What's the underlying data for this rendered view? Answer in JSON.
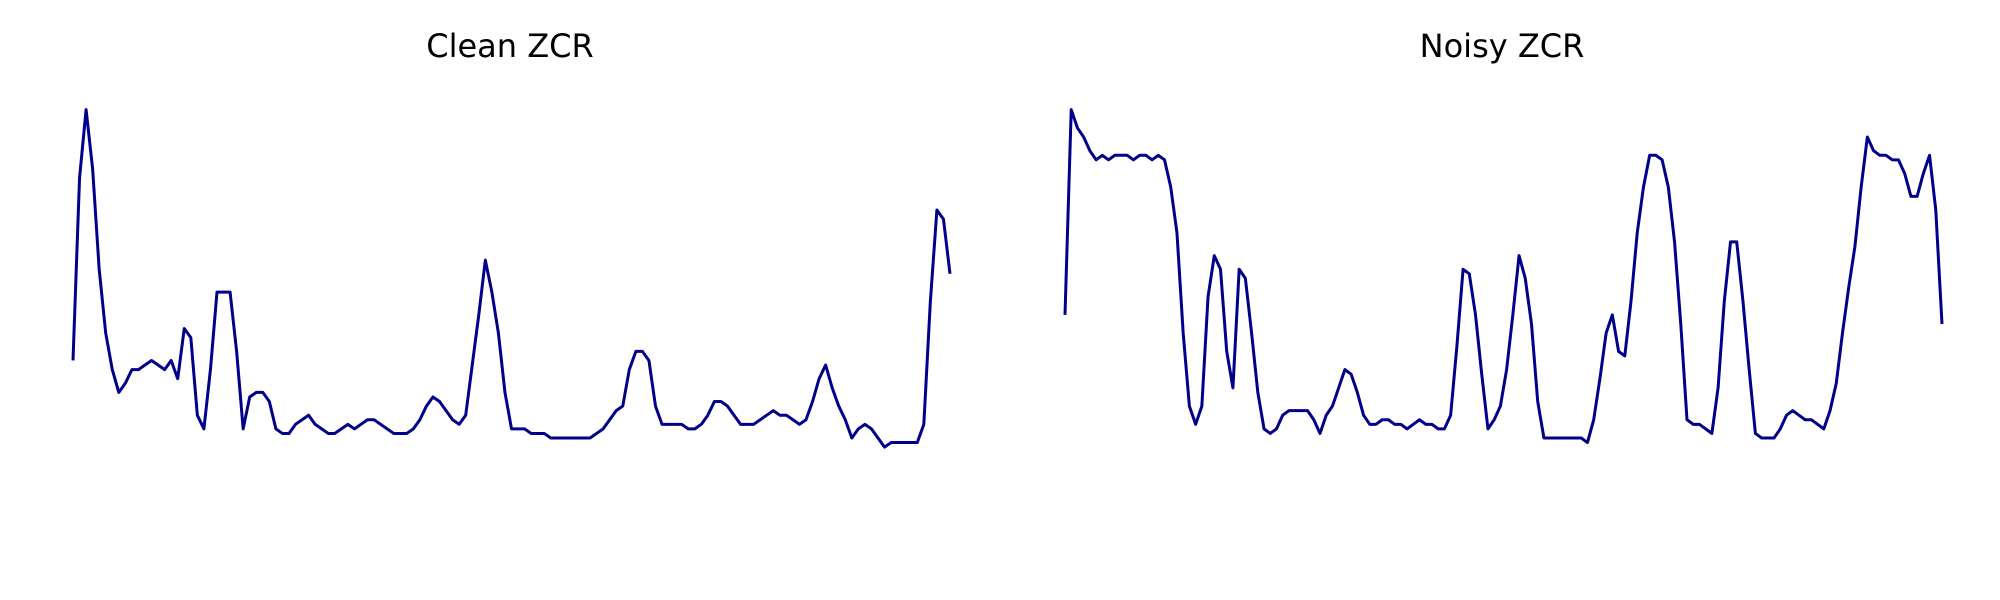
{
  "chart_data": [
    {
      "type": "line",
      "title": "Clean ZCR",
      "xlabel": "",
      "ylabel": "",
      "grid": false,
      "axes_visible": false,
      "line_color": "#00008b",
      "xlim": [
        0,
        150
      ],
      "ylim": [
        0,
        100
      ],
      "series": [
        {
          "values": [
            42,
            82,
            97,
            84,
            62,
            48,
            40,
            35,
            37,
            40,
            40,
            41,
            42,
            41,
            40,
            42,
            38,
            49,
            47,
            30,
            27,
            40,
            57,
            57,
            57,
            44,
            27,
            34,
            35,
            35,
            33,
            27,
            26,
            26,
            28,
            29,
            30,
            28,
            27,
            26,
            26,
            27,
            28,
            27,
            28,
            29,
            29,
            28,
            27,
            26,
            26,
            26,
            27,
            29,
            32,
            34,
            33,
            31,
            29,
            28,
            30,
            41,
            52,
            64,
            57,
            48,
            35,
            27,
            27,
            27,
            26,
            26,
            26,
            25,
            25,
            25,
            25,
            25,
            25,
            25,
            26,
            27,
            29,
            31,
            32,
            40,
            44,
            44,
            42,
            32,
            28,
            28,
            28,
            28,
            27,
            27,
            28,
            30,
            33,
            33,
            32,
            30,
            28,
            28,
            28,
            29,
            30,
            31,
            30,
            30,
            29,
            28,
            29,
            33,
            38,
            41,
            36,
            32,
            29,
            25,
            27,
            28,
            27,
            25,
            23,
            24,
            24,
            24,
            24,
            24,
            28,
            55,
            75,
            73,
            61
          ]
        }
      ]
    },
    {
      "type": "line",
      "title": "Noisy ZCR",
      "xlabel": "",
      "ylabel": "",
      "grid": false,
      "axes_visible": false,
      "line_color": "#00008b",
      "xlim": [
        0,
        150
      ],
      "ylim": [
        0,
        100
      ],
      "series": [
        {
          "values": [
            52,
            97,
            93,
            91,
            88,
            86,
            87,
            86,
            87,
            87,
            87,
            86,
            87,
            87,
            86,
            87,
            86,
            80,
            70,
            48,
            32,
            28,
            32,
            56,
            65,
            62,
            44,
            36,
            62,
            60,
            48,
            35,
            27,
            26,
            27,
            30,
            31,
            31,
            31,
            31,
            29,
            26,
            30,
            32,
            36,
            40,
            39,
            35,
            30,
            28,
            28,
            29,
            29,
            28,
            28,
            27,
            28,
            29,
            28,
            28,
            27,
            27,
            30,
            45,
            62,
            61,
            52,
            39,
            27,
            29,
            32,
            40,
            52,
            65,
            60,
            50,
            33,
            25,
            25,
            25,
            25,
            25,
            25,
            25,
            24,
            29,
            38,
            48,
            52,
            44,
            43,
            55,
            70,
            80,
            87,
            87,
            86,
            80,
            68,
            50,
            29,
            28,
            28,
            27,
            26,
            36,
            55,
            68,
            68,
            55,
            40,
            26,
            25,
            25,
            25,
            27,
            30,
            31,
            30,
            29,
            29,
            28,
            27,
            31,
            37,
            48,
            58,
            67,
            80,
            91,
            88,
            87,
            87,
            86,
            86,
            83,
            78,
            78,
            83,
            87,
            75,
            50
          ]
        }
      ]
    }
  ]
}
